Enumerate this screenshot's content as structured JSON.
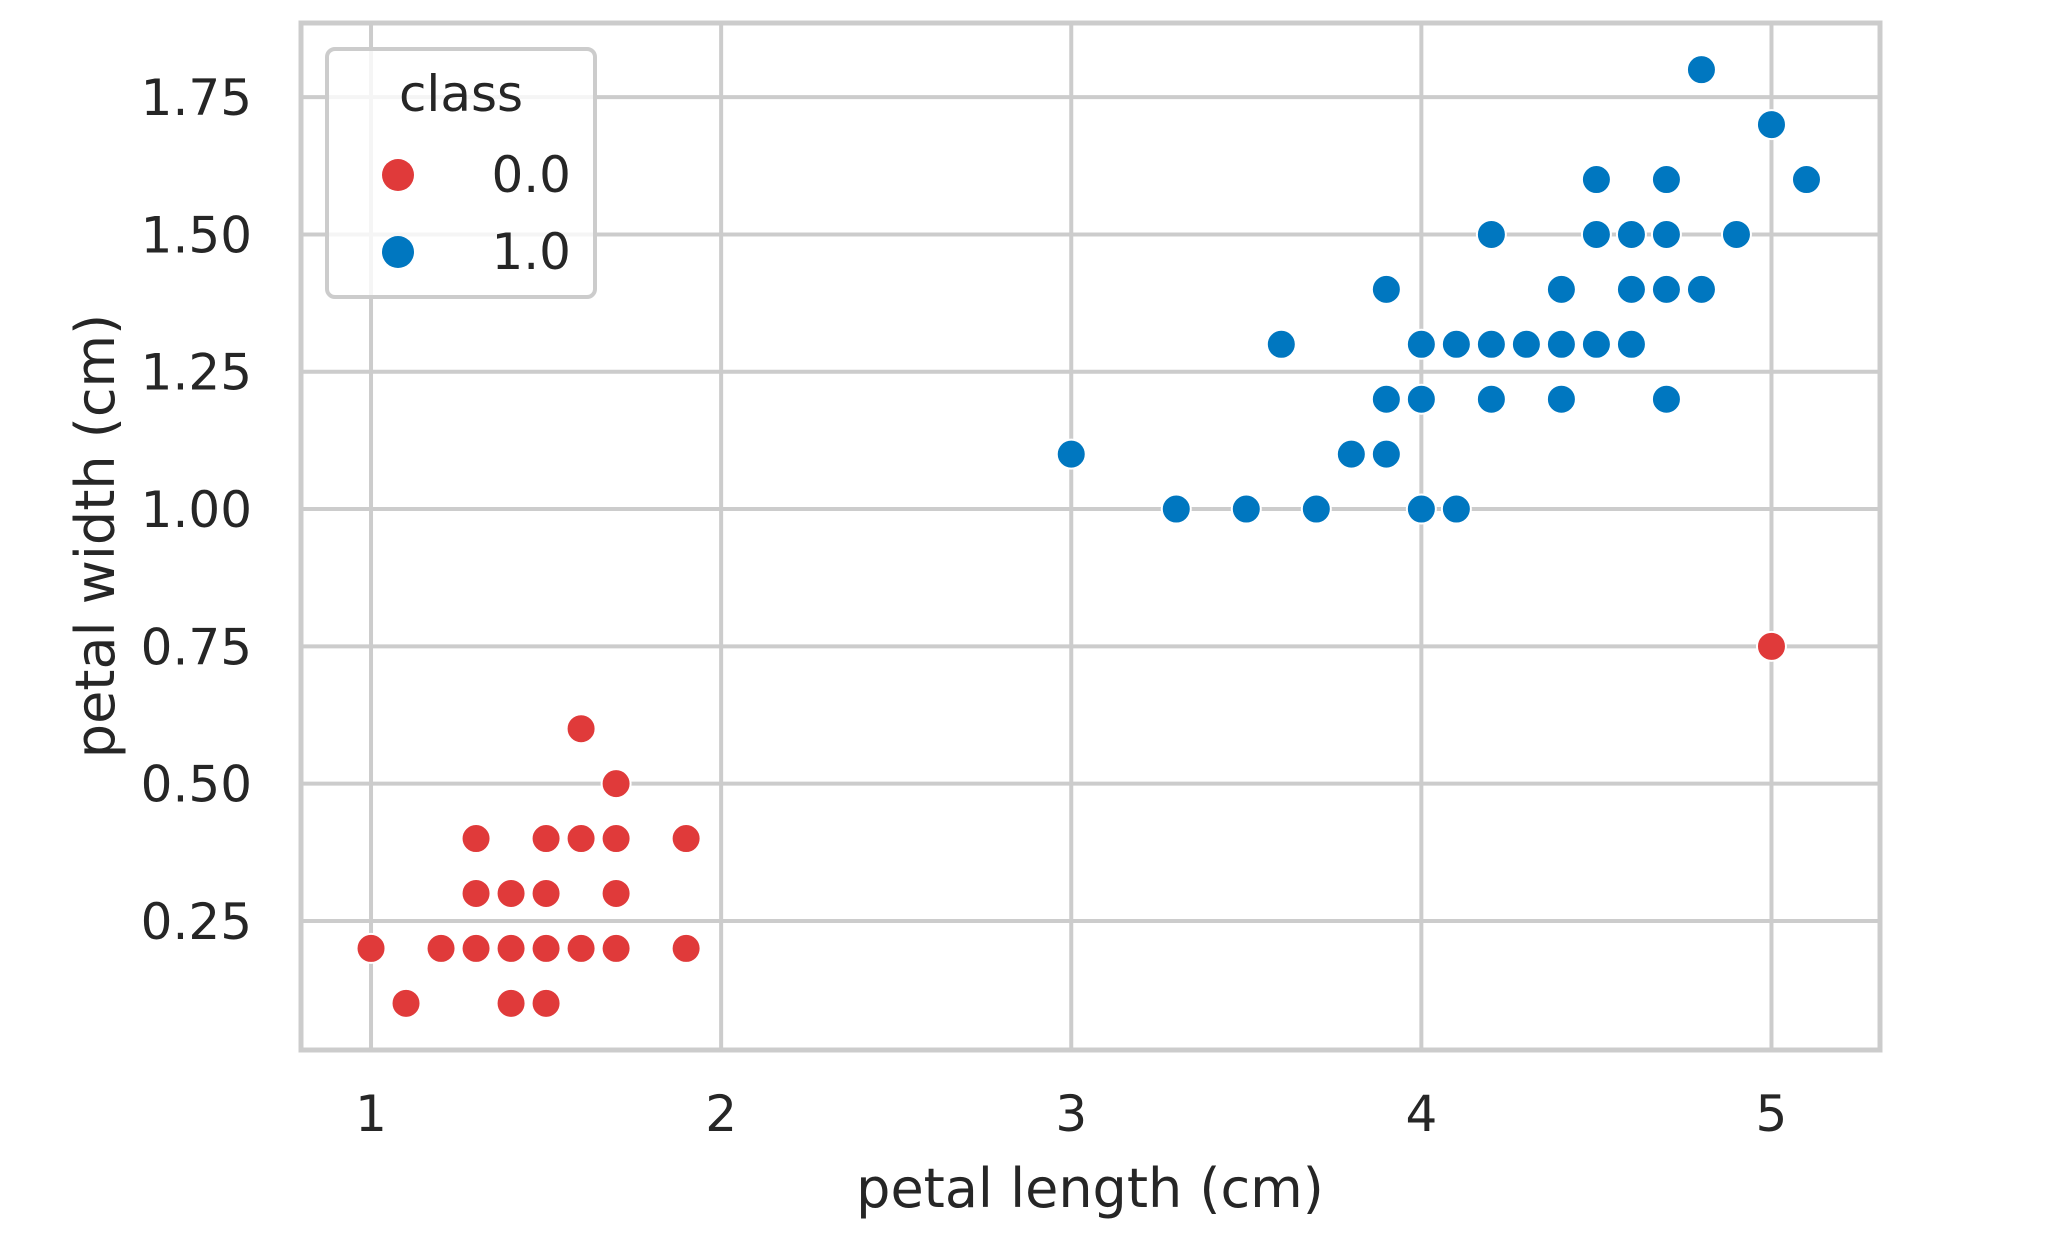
{
  "chart_data": {
    "type": "scatter",
    "title": "",
    "xlabel": "petal length (cm)",
    "ylabel": "petal width (cm)",
    "xlim": [
      0.8,
      5.31
    ],
    "ylim": [
      0.015,
      1.885
    ],
    "xticks": [
      1,
      2,
      3,
      4,
      5
    ],
    "xtick_labels": [
      "1",
      "2",
      "3",
      "4",
      "5"
    ],
    "yticks": [
      0.25,
      0.5,
      0.75,
      1.0,
      1.25,
      1.5,
      1.75
    ],
    "ytick_labels": [
      "0.25",
      "0.50",
      "0.75",
      "1.00",
      "1.25",
      "1.50",
      "1.75"
    ],
    "grid": true,
    "legend": {
      "title": "class",
      "position": "upper left"
    },
    "series": [
      {
        "name": "0.0",
        "color": "#E03A3A",
        "points": [
          [
            1.0,
            0.2
          ],
          [
            1.1,
            0.1
          ],
          [
            1.2,
            0.2
          ],
          [
            1.3,
            0.2
          ],
          [
            1.3,
            0.3
          ],
          [
            1.3,
            0.4
          ],
          [
            1.4,
            0.1
          ],
          [
            1.4,
            0.2
          ],
          [
            1.4,
            0.3
          ],
          [
            1.5,
            0.1
          ],
          [
            1.5,
            0.2
          ],
          [
            1.5,
            0.3
          ],
          [
            1.5,
            0.4
          ],
          [
            1.6,
            0.2
          ],
          [
            1.6,
            0.4
          ],
          [
            1.6,
            0.6
          ],
          [
            1.7,
            0.2
          ],
          [
            1.7,
            0.3
          ],
          [
            1.7,
            0.4
          ],
          [
            1.7,
            0.5
          ],
          [
            1.9,
            0.2
          ],
          [
            1.9,
            0.4
          ],
          [
            5.0,
            0.75
          ]
        ]
      },
      {
        "name": "1.0",
        "color": "#0077C0",
        "points": [
          [
            3.0,
            1.1
          ],
          [
            3.3,
            1.0
          ],
          [
            3.5,
            1.0
          ],
          [
            3.6,
            1.3
          ],
          [
            3.7,
            1.0
          ],
          [
            3.8,
            1.1
          ],
          [
            3.9,
            1.1
          ],
          [
            3.9,
            1.2
          ],
          [
            3.9,
            1.4
          ],
          [
            4.0,
            1.0
          ],
          [
            4.0,
            1.2
          ],
          [
            4.0,
            1.3
          ],
          [
            4.1,
            1.0
          ],
          [
            4.1,
            1.3
          ],
          [
            4.2,
            1.2
          ],
          [
            4.2,
            1.3
          ],
          [
            4.2,
            1.5
          ],
          [
            4.3,
            1.3
          ],
          [
            4.4,
            1.2
          ],
          [
            4.4,
            1.3
          ],
          [
            4.4,
            1.4
          ],
          [
            4.5,
            1.3
          ],
          [
            4.5,
            1.5
          ],
          [
            4.5,
            1.6
          ],
          [
            4.6,
            1.3
          ],
          [
            4.6,
            1.4
          ],
          [
            4.6,
            1.5
          ],
          [
            4.7,
            1.2
          ],
          [
            4.7,
            1.4
          ],
          [
            4.7,
            1.5
          ],
          [
            4.7,
            1.6
          ],
          [
            4.8,
            1.4
          ],
          [
            4.8,
            1.8
          ],
          [
            4.9,
            1.5
          ],
          [
            5.0,
            1.7
          ],
          [
            5.1,
            1.6
          ]
        ]
      }
    ]
  },
  "style": {
    "grid_color": "#CCCCCC",
    "text_color": "#262626",
    "background": "#FFFFFF"
  }
}
